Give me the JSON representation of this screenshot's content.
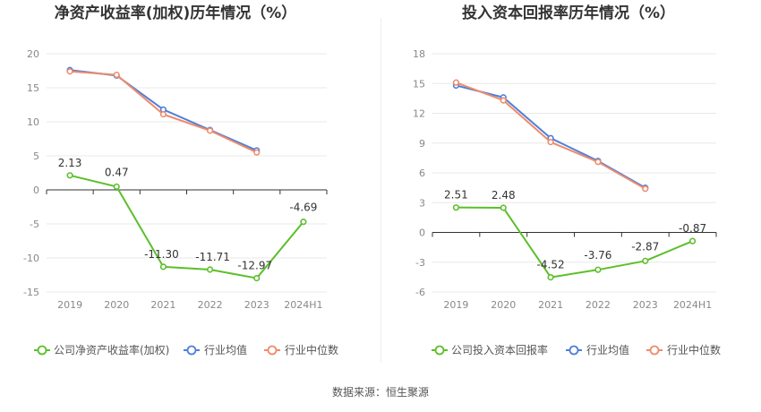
{
  "footer": {
    "source": "数据来源：恒生聚源"
  },
  "colors": {
    "company": "#5cbf2a",
    "industry_avg": "#4f7fd8",
    "industry_median": "#ee8b6c",
    "grid": "#e8e8e8",
    "zero_axis": "#333333"
  },
  "chart_data": [
    {
      "type": "line",
      "title": "净资产收益率(加权)历年情况（%）",
      "categories": [
        "2019",
        "2020",
        "2021",
        "2022",
        "2023",
        "2024H1"
      ],
      "y_ticks": [
        20,
        15,
        10,
        5,
        0,
        -5,
        -10,
        -15
      ],
      "ylim": [
        -15,
        20
      ],
      "grid": true,
      "legend_position": "bottom",
      "series": [
        {
          "name": "公司净资产收益率(加权)",
          "role": "company",
          "values": [
            2.13,
            0.47,
            -11.3,
            -11.71,
            -12.97,
            -4.69
          ],
          "labels": [
            "2.13",
            "0.47",
            "-11.30",
            "-11.71",
            "-12.97",
            "-4.69"
          ]
        },
        {
          "name": "行业均值",
          "role": "industry_avg",
          "values": [
            17.6,
            16.8,
            11.8,
            8.8,
            5.8,
            null
          ]
        },
        {
          "name": "行业中位数",
          "role": "industry_median",
          "values": [
            17.4,
            16.9,
            11.1,
            8.7,
            5.5,
            null
          ]
        }
      ]
    },
    {
      "type": "line",
      "title": "投入资本回报率历年情况（%）",
      "categories": [
        "2019",
        "2020",
        "2021",
        "2022",
        "2023",
        "2024H1"
      ],
      "y_ticks": [
        18,
        15,
        12,
        9,
        6,
        3,
        0,
        -3,
        -6
      ],
      "ylim": [
        -6,
        18
      ],
      "grid": true,
      "legend_position": "bottom",
      "series": [
        {
          "name": "公司投入资本回报率",
          "role": "company",
          "values": [
            2.51,
            2.48,
            -4.52,
            -3.76,
            -2.87,
            -0.87
          ],
          "labels": [
            "2.51",
            "2.48",
            "-4.52",
            "-3.76",
            "-2.87",
            "-0.87"
          ]
        },
        {
          "name": "行业均值",
          "role": "industry_avg",
          "values": [
            14.8,
            13.6,
            9.5,
            7.2,
            4.5,
            null
          ]
        },
        {
          "name": "行业中位数",
          "role": "industry_median",
          "values": [
            15.1,
            13.3,
            9.1,
            7.1,
            4.4,
            null
          ]
        }
      ]
    }
  ]
}
